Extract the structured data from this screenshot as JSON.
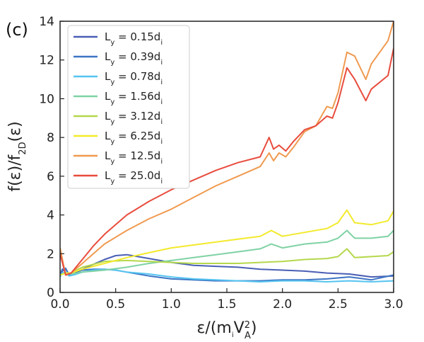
{
  "chart_data": {
    "type": "line",
    "panel_label": "(c)",
    "xlabel": {
      "prefix": "ε/(m",
      "sub1": "i",
      "mid": "V",
      "sup": "2",
      "sub2": "A",
      "suffix": ")"
    },
    "ylabel": {
      "prefix": "f(ε)/f",
      "sub": "2D",
      "suffix": "(ε)"
    },
    "xlim": [
      0,
      3
    ],
    "ylim": [
      0,
      14
    ],
    "xticks": [
      0.0,
      0.5,
      1.0,
      1.5,
      2.0,
      2.5,
      3.0
    ],
    "xtick_labels": [
      "0.0",
      "0.5",
      "1.0",
      "1.5",
      "2.0",
      "2.5",
      "3.0"
    ],
    "yticks": [
      0,
      2,
      4,
      6,
      8,
      10,
      12,
      14
    ],
    "ytick_labels": [
      "0",
      "2",
      "4",
      "6",
      "8",
      "10",
      "12",
      "14"
    ],
    "legend_position": "top-left",
    "series": [
      {
        "name": "L",
        "name_sub": "y",
        "name_val": " = 0.15d",
        "name_val_sub": "i",
        "color": "#4a5fb5",
        "x": [
          0,
          0.02,
          0.05,
          0.08,
          0.12,
          0.2,
          0.3,
          0.4,
          0.5,
          0.6,
          0.7,
          0.8,
          0.9,
          1.0,
          1.2,
          1.4,
          1.6,
          1.8,
          2.0,
          2.2,
          2.4,
          2.6,
          2.8,
          3.0
        ],
        "y": [
          0.9,
          1.1,
          1.2,
          0.95,
          1.0,
          1.2,
          1.45,
          1.7,
          1.9,
          1.95,
          1.85,
          1.75,
          1.65,
          1.55,
          1.4,
          1.35,
          1.3,
          1.2,
          1.15,
          1.1,
          1.0,
          0.95,
          0.8,
          0.85
        ]
      },
      {
        "name": "L",
        "name_sub": "y",
        "name_val": " = 0.39d",
        "name_val_sub": "i",
        "color": "#3d74c4",
        "x": [
          0,
          0.02,
          0.05,
          0.08,
          0.12,
          0.2,
          0.3,
          0.4,
          0.5,
          0.6,
          0.8,
          1.0,
          1.2,
          1.4,
          1.6,
          1.8,
          2.0,
          2.2,
          2.4,
          2.6,
          2.8,
          3.0
        ],
        "y": [
          0.9,
          1.2,
          1.25,
          0.9,
          1.0,
          1.15,
          1.2,
          1.2,
          1.15,
          1.05,
          0.85,
          0.7,
          0.65,
          0.6,
          0.6,
          0.6,
          0.65,
          0.65,
          0.7,
          0.8,
          0.65,
          0.9
        ]
      },
      {
        "name": "L",
        "name_sub": "y",
        "name_val": " = 0.78d",
        "name_val_sub": "i",
        "color": "#56c4f0",
        "x": [
          0,
          0.02,
          0.05,
          0.08,
          0.12,
          0.2,
          0.3,
          0.4,
          0.5,
          0.6,
          0.8,
          1.0,
          1.2,
          1.4,
          1.6,
          1.8,
          2.0,
          2.2,
          2.4,
          2.6,
          2.8,
          3.0
        ],
        "y": [
          0.8,
          1.0,
          1.05,
          0.85,
          0.9,
          1.05,
          1.15,
          1.2,
          1.15,
          1.05,
          0.95,
          0.8,
          0.7,
          0.65,
          0.6,
          0.55,
          0.6,
          0.6,
          0.55,
          0.6,
          0.55,
          0.6
        ]
      },
      {
        "name": "L",
        "name_sub": "y",
        "name_val": " = 1.56d",
        "name_val_sub": "i",
        "color": "#7fd2a4",
        "x": [
          0,
          0.05,
          0.1,
          0.2,
          0.4,
          0.6,
          0.8,
          1.0,
          1.2,
          1.4,
          1.6,
          1.8,
          1.9,
          2.0,
          2.2,
          2.4,
          2.5,
          2.58,
          2.65,
          2.8,
          2.95,
          3.0
        ],
        "y": [
          0.9,
          1.0,
          0.95,
          1.05,
          1.15,
          1.3,
          1.5,
          1.65,
          1.8,
          1.95,
          2.1,
          2.25,
          2.5,
          2.3,
          2.5,
          2.6,
          2.8,
          3.2,
          2.8,
          2.8,
          2.9,
          3.2
        ]
      },
      {
        "name": "L",
        "name_sub": "y",
        "name_val": " = 3.12d",
        "name_val_sub": "i",
        "color": "#b5d84c",
        "x": [
          0,
          0.05,
          0.1,
          0.2,
          0.4,
          0.6,
          0.8,
          1.0,
          1.2,
          1.4,
          1.6,
          1.8,
          2.0,
          2.2,
          2.4,
          2.5,
          2.58,
          2.65,
          2.8,
          2.95,
          3.0
        ],
        "y": [
          0.9,
          1.0,
          1.0,
          1.3,
          1.6,
          1.65,
          1.6,
          1.55,
          1.5,
          1.5,
          1.5,
          1.55,
          1.6,
          1.7,
          1.75,
          1.85,
          2.25,
          1.8,
          1.85,
          1.9,
          2.1
        ]
      },
      {
        "name": "L",
        "name_sub": "y",
        "name_val": " = 6.25d",
        "name_val_sub": "i",
        "color": "#f2ea2c",
        "x": [
          0,
          0.05,
          0.1,
          0.2,
          0.4,
          0.6,
          0.8,
          1.0,
          1.2,
          1.4,
          1.6,
          1.8,
          1.9,
          2.0,
          2.2,
          2.4,
          2.5,
          2.58,
          2.65,
          2.8,
          2.95,
          3.0
        ],
        "y": [
          0.9,
          1.0,
          1.0,
          1.2,
          1.5,
          1.8,
          2.05,
          2.3,
          2.45,
          2.6,
          2.75,
          2.9,
          3.2,
          2.9,
          3.1,
          3.3,
          3.6,
          4.25,
          3.6,
          3.5,
          3.7,
          4.2
        ]
      },
      {
        "name": "L",
        "name_sub": "y",
        "name_val": " = 12.5d",
        "name_val_sub": "i",
        "color": "#f09a50",
        "x": [
          0,
          0.05,
          0.1,
          0.2,
          0.3,
          0.4,
          0.6,
          0.8,
          1.0,
          1.2,
          1.4,
          1.6,
          1.8,
          1.88,
          1.92,
          1.97,
          2.03,
          2.1,
          2.2,
          2.3,
          2.4,
          2.45,
          2.5,
          2.58,
          2.65,
          2.75,
          2.8,
          2.95,
          3.0
        ],
        "y": [
          2.3,
          0.9,
          1.0,
          1.5,
          2.0,
          2.5,
          3.2,
          3.8,
          4.3,
          4.9,
          5.5,
          6.0,
          6.5,
          7.2,
          6.8,
          7.2,
          7.0,
          7.5,
          8.3,
          8.6,
          9.6,
          9.5,
          10.3,
          12.4,
          12.2,
          11.0,
          11.8,
          13.0,
          14.0
        ]
      },
      {
        "name": "L",
        "name_sub": "y",
        "name_val": " = 25.0d",
        "name_val_sub": "i",
        "color": "#e84c3d",
        "x": [
          0,
          0.05,
          0.1,
          0.2,
          0.3,
          0.4,
          0.6,
          0.8,
          1.0,
          1.2,
          1.4,
          1.6,
          1.8,
          1.88,
          1.92,
          1.97,
          2.03,
          2.1,
          2.2,
          2.3,
          2.4,
          2.45,
          2.5,
          2.58,
          2.65,
          2.75,
          2.8,
          2.95,
          3.0
        ],
        "y": [
          2.0,
          0.9,
          1.0,
          1.7,
          2.4,
          3.0,
          4.0,
          4.7,
          5.3,
          5.8,
          6.3,
          6.7,
          7.0,
          8.0,
          7.4,
          7.6,
          7.3,
          7.8,
          8.4,
          8.6,
          9.1,
          9.0,
          9.8,
          11.6,
          11.0,
          9.9,
          10.5,
          11.2,
          12.6
        ]
      }
    ]
  }
}
